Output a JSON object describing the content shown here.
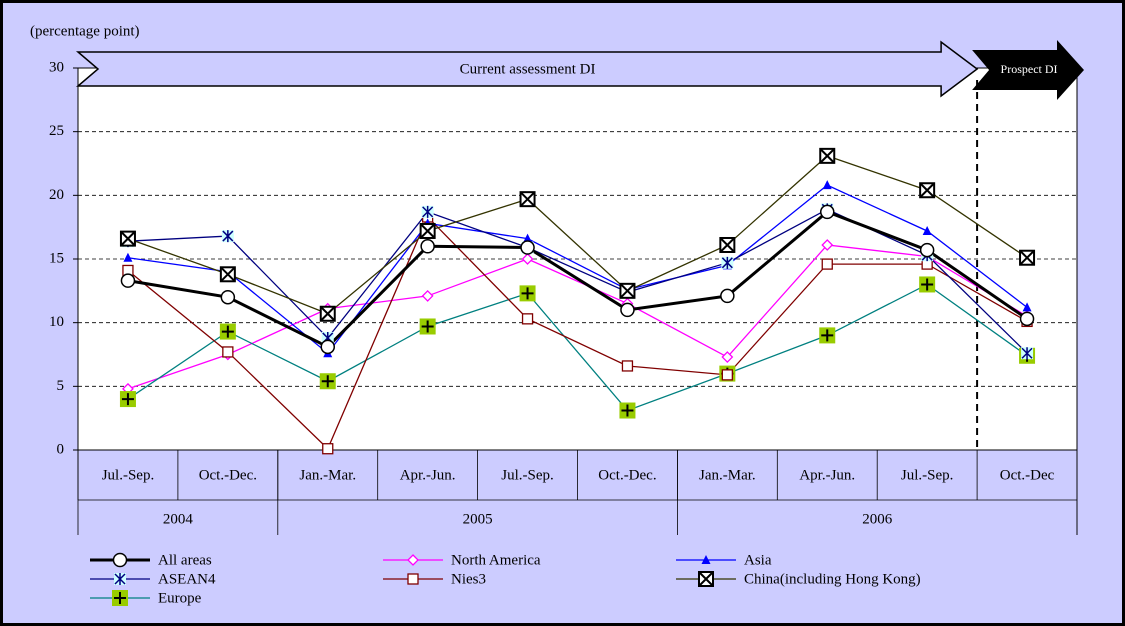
{
  "chart_data": {
    "type": "line",
    "y_axis_label": "(percentage point)",
    "annotations": {
      "current": "Current assessment DI",
      "prospect": "Prospect DI"
    },
    "categories": [
      "Jul.-Sep.",
      "Oct.-Dec.",
      "Jan.-Mar.",
      "Apr.-Jun.",
      "Jul.-Sep.",
      "Oct.-Dec.",
      "Jan.-Mar.",
      "Apr.-Jun.",
      "Jul.-Sep.",
      "Oct.-Dec"
    ],
    "groups": [
      {
        "label": "2004",
        "span": 2
      },
      {
        "label": "2005",
        "span": 4
      },
      {
        "label": "2006",
        "span": 4
      }
    ],
    "ylim": [
      0,
      30
    ],
    "yticks": [
      0,
      5,
      10,
      15,
      20,
      25,
      30
    ],
    "grid": true,
    "series": [
      {
        "name": "All areas",
        "color": "#000000",
        "marker": "circle",
        "values": [
          13.3,
          12.0,
          8.1,
          16.0,
          15.9,
          11.0,
          12.1,
          18.7,
          15.7,
          10.3
        ]
      },
      {
        "name": "North America",
        "color": "#ff00ff",
        "marker": "diamond",
        "values": [
          4.8,
          7.5,
          11.1,
          12.1,
          15.0,
          11.5,
          7.3,
          16.1,
          15.2,
          10.5
        ]
      },
      {
        "name": "Asia",
        "color": "#0000ff",
        "marker": "triangle",
        "values": [
          15.1,
          14.0,
          7.6,
          17.8,
          16.6,
          12.6,
          14.5,
          20.8,
          17.2,
          11.2
        ]
      },
      {
        "name": "ASEAN4",
        "color": "#000080",
        "marker": "asterisk",
        "values": [
          16.4,
          16.8,
          8.8,
          18.7,
          15.9,
          12.4,
          14.7,
          18.9,
          15.3,
          7.6
        ]
      },
      {
        "name": "Nies3",
        "color": "#800000",
        "marker": "square",
        "values": [
          14.1,
          7.7,
          0.1,
          18.3,
          10.3,
          6.6,
          5.9,
          14.6,
          14.6,
          10.1
        ]
      },
      {
        "name": "China(including Hong Kong)",
        "color": "#333300",
        "marker": "xbox",
        "values": [
          16.6,
          13.8,
          10.7,
          17.2,
          19.7,
          12.5,
          16.1,
          23.1,
          20.4,
          15.1
        ]
      },
      {
        "name": "Europe",
        "color": "#008080",
        "marker": "plus",
        "values": [
          4.0,
          9.3,
          5.4,
          9.7,
          12.3,
          3.1,
          6.0,
          9.0,
          13.0,
          7.4
        ]
      }
    ]
  }
}
